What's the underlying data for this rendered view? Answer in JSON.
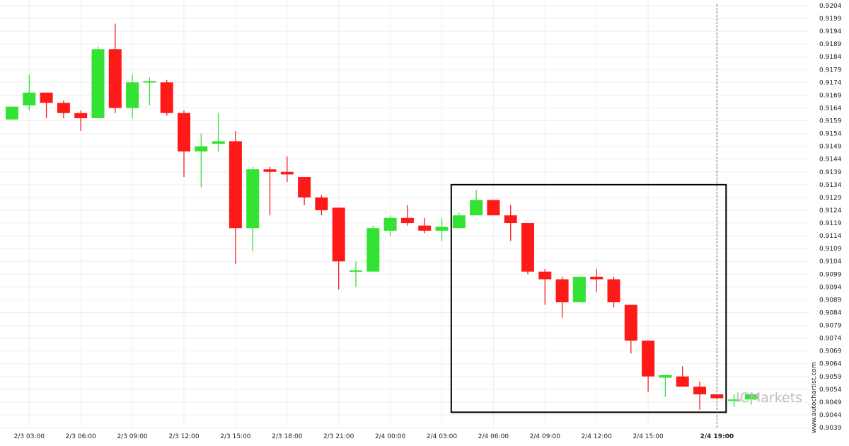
{
  "chart_data": {
    "type": "candlestick",
    "title": "",
    "xlabel": "",
    "ylabel": "",
    "ylim": [
      0.9039,
      0.9204
    ],
    "y_ticks": [
      "0.9204",
      "0.9199",
      "0.9194",
      "0.9189",
      "0.9184",
      "0.9179",
      "0.9174",
      "0.9169",
      "0.9164",
      "0.9159",
      "0.9154",
      "0.9149",
      "0.9144",
      "0.9139",
      "0.9134",
      "0.9129",
      "0.9124",
      "0.9119",
      "0.9114",
      "0.9109",
      "0.9104",
      "0.9099",
      "0.9094",
      "0.9089",
      "0.9084",
      "0.9079",
      "0.9074",
      "0.9069",
      "0.9064",
      "0.9059",
      "0.9054",
      "0.9049",
      "0.9044",
      "0.9039"
    ],
    "x_ticks": [
      {
        "label": "2/3 03:00",
        "bar": 1
      },
      {
        "label": "2/3 06:00",
        "bar": 4
      },
      {
        "label": "2/3 09:00",
        "bar": 7
      },
      {
        "label": "2/3 12:00",
        "bar": 10
      },
      {
        "label": "2/3 15:00",
        "bar": 13
      },
      {
        "label": "2/3 18:00",
        "bar": 16
      },
      {
        "label": "2/3 21:00",
        "bar": 19
      },
      {
        "label": "2/4 00:00",
        "bar": 22
      },
      {
        "label": "2/4 03:00",
        "bar": 25
      },
      {
        "label": "2/4 06:00",
        "bar": 28
      },
      {
        "label": "2/4 09:00",
        "bar": 31
      },
      {
        "label": "2/4 12:00",
        "bar": 34
      },
      {
        "label": "2/4 15:00",
        "bar": 37
      },
      {
        "label": "2/4 19:00",
        "bar": 41,
        "bold": true
      }
    ],
    "colors": {
      "up": "#33e233",
      "down": "#ff1a1a",
      "box": "#000000",
      "grid": "#eeeeee",
      "vline": "#666666",
      "brand": "#bfbfbf"
    },
    "candles": [
      {
        "o": 0.91595,
        "h": 0.91645,
        "l": 0.91595,
        "c": 0.91645
      },
      {
        "o": 0.9165,
        "h": 0.9177,
        "l": 0.9163,
        "c": 0.917
      },
      {
        "o": 0.917,
        "h": 0.917,
        "l": 0.916,
        "c": 0.9166
      },
      {
        "o": 0.9166,
        "h": 0.9167,
        "l": 0.916,
        "c": 0.9162
      },
      {
        "o": 0.9162,
        "h": 0.9163,
        "l": 0.9155,
        "c": 0.916
      },
      {
        "o": 0.916,
        "h": 0.9188,
        "l": 0.916,
        "c": 0.9187
      },
      {
        "o": 0.9187,
        "h": 0.9197,
        "l": 0.9162,
        "c": 0.9164
      },
      {
        "o": 0.9164,
        "h": 0.9177,
        "l": 0.916,
        "c": 0.9174
      },
      {
        "o": 0.9174,
        "h": 0.9176,
        "l": 0.9165,
        "c": 0.91745
      },
      {
        "o": 0.9174,
        "h": 0.9175,
        "l": 0.9161,
        "c": 0.9162
      },
      {
        "o": 0.9162,
        "h": 0.9163,
        "l": 0.9137,
        "c": 0.9147
      },
      {
        "o": 0.9147,
        "h": 0.9154,
        "l": 0.9133,
        "c": 0.9149
      },
      {
        "o": 0.915,
        "h": 0.9162,
        "l": 0.9147,
        "c": 0.9151
      },
      {
        "o": 0.9151,
        "h": 0.9155,
        "l": 0.9103,
        "c": 0.9117
      },
      {
        "o": 0.9117,
        "h": 0.9141,
        "l": 0.9108,
        "c": 0.914
      },
      {
        "o": 0.914,
        "h": 0.9141,
        "l": 0.9122,
        "c": 0.9139
      },
      {
        "o": 0.9139,
        "h": 0.9145,
        "l": 0.9135,
        "c": 0.9138
      },
      {
        "o": 0.9137,
        "h": 0.9137,
        "l": 0.9126,
        "c": 0.9129
      },
      {
        "o": 0.9129,
        "h": 0.913,
        "l": 0.9122,
        "c": 0.9124
      },
      {
        "o": 0.9125,
        "h": 0.9125,
        "l": 0.9093,
        "c": 0.9104
      },
      {
        "o": 0.91,
        "h": 0.9104,
        "l": 0.9094,
        "c": 0.91005
      },
      {
        "o": 0.91,
        "h": 0.9118,
        "l": 0.91,
        "c": 0.9117
      },
      {
        "o": 0.9116,
        "h": 0.9122,
        "l": 0.9114,
        "c": 0.9121
      },
      {
        "o": 0.9121,
        "h": 0.9126,
        "l": 0.9118,
        "c": 0.9119
      },
      {
        "o": 0.9118,
        "h": 0.9121,
        "l": 0.9115,
        "c": 0.9116
      },
      {
        "o": 0.9116,
        "h": 0.9121,
        "l": 0.9112,
        "c": 0.91175
      },
      {
        "o": 0.9117,
        "h": 0.9123,
        "l": 0.9117,
        "c": 0.9122
      },
      {
        "o": 0.9122,
        "h": 0.9132,
        "l": 0.9122,
        "c": 0.9128
      },
      {
        "o": 0.9128,
        "h": 0.9128,
        "l": 0.9122,
        "c": 0.9122
      },
      {
        "o": 0.9122,
        "h": 0.9126,
        "l": 0.9112,
        "c": 0.9119
      },
      {
        "o": 0.9119,
        "h": 0.9119,
        "l": 0.9099,
        "c": 0.91
      },
      {
        "o": 0.91,
        "h": 0.9101,
        "l": 0.9087,
        "c": 0.9097
      },
      {
        "o": 0.9097,
        "h": 0.9098,
        "l": 0.9082,
        "c": 0.9088
      },
      {
        "o": 0.9088,
        "h": 0.9098,
        "l": 0.9088,
        "c": 0.9098
      },
      {
        "o": 0.9098,
        "h": 0.9101,
        "l": 0.9092,
        "c": 0.9097
      },
      {
        "o": 0.9097,
        "h": 0.9098,
        "l": 0.9086,
        "c": 0.9088
      },
      {
        "o": 0.9087,
        "h": 0.9087,
        "l": 0.9068,
        "c": 0.9073
      },
      {
        "o": 0.9073,
        "h": 0.9073,
        "l": 0.9053,
        "c": 0.9059
      },
      {
        "o": 0.90585,
        "h": 0.9059,
        "l": 0.9051,
        "c": 0.90595
      },
      {
        "o": 0.9059,
        "h": 0.9063,
        "l": 0.9055,
        "c": 0.9055
      },
      {
        "o": 0.9055,
        "h": 0.9057,
        "l": 0.9046,
        "c": 0.9052
      },
      {
        "o": 0.9052,
        "h": 0.9052,
        "l": 0.905,
        "c": 0.90505
      },
      {
        "o": 0.90495,
        "h": 0.9052,
        "l": 0.9047,
        "c": 0.905
      },
      {
        "o": 0.905,
        "h": 0.9052,
        "l": 0.9048,
        "c": 0.9052
      }
    ],
    "highlight_box": {
      "from_bar": 26,
      "to_bar": 41,
      "high": 0.9134,
      "low": 0.9045
    },
    "current_time_marker_bar": 41,
    "side_label": "www.autochartist.com",
    "brand_logo": "ICMarkets"
  }
}
